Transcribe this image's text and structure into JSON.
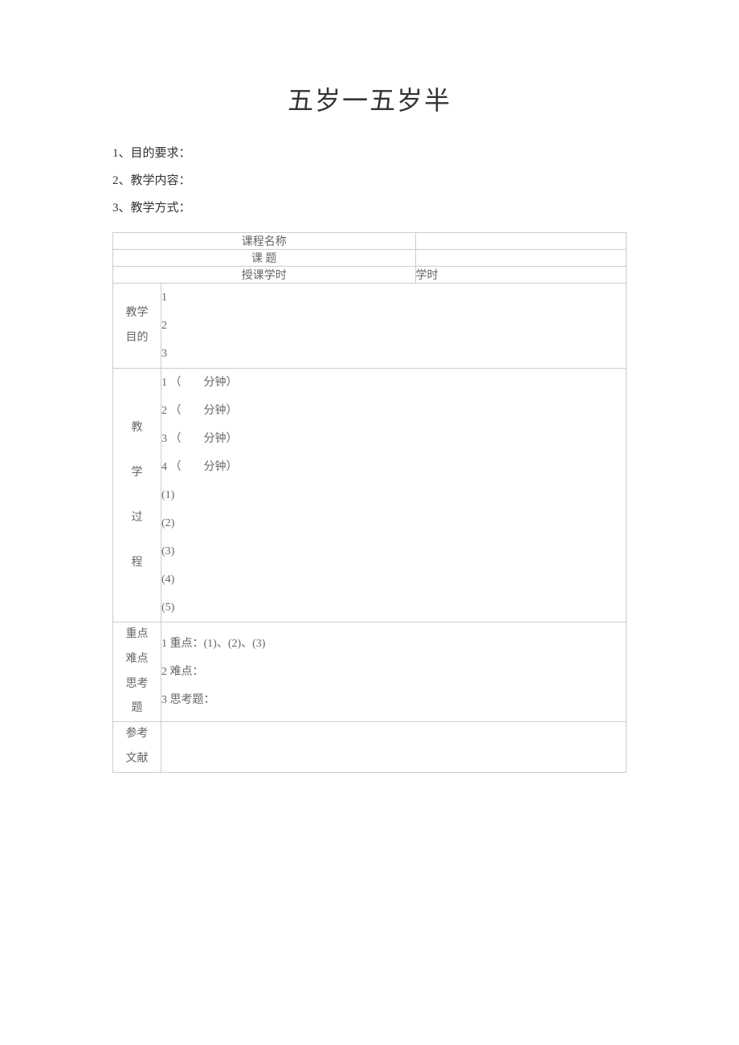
{
  "title": "五岁一五岁半",
  "listItems": {
    "item1": "1、目的要求：",
    "item2": "2、教学内容：",
    "item3": "3、教学方式："
  },
  "table": {
    "row1": {
      "label": "课程名称",
      "content": ""
    },
    "row2": {
      "label": "课 题",
      "content": ""
    },
    "row3": {
      "label": "授课学时",
      "content": "学时"
    },
    "row4": {
      "labelLine1": "教学",
      "labelLine2": "目的",
      "contentLine1": "1",
      "contentLine2": "2",
      "contentLine3": "3"
    },
    "row5": {
      "labelLine1": "教",
      "labelLine2": "学",
      "labelLine3": "过",
      "labelLine4": "程",
      "contentLine1": "1 （　　分钟）",
      "contentLine2": "2 （　　分钟）",
      "contentLine3": "3 （　　分钟）",
      "contentLine4": "4 （　　分钟）",
      "contentLine5": "(1)",
      "contentLine6": "(2)",
      "contentLine7": "(3)",
      "contentLine8": "(4)",
      "contentLine9": "(5)"
    },
    "row6": {
      "labelLine1": "重点",
      "labelLine2": "难点",
      "labelLine3": "思考",
      "labelLine4": "题",
      "contentLine1": "1 重点：(1)、(2)、(3)",
      "contentLine2": "2 难点：",
      "contentLine3": "3 思考题："
    },
    "row7": {
      "labelLine1": "参考",
      "labelLine2": "文献",
      "content": ""
    }
  }
}
